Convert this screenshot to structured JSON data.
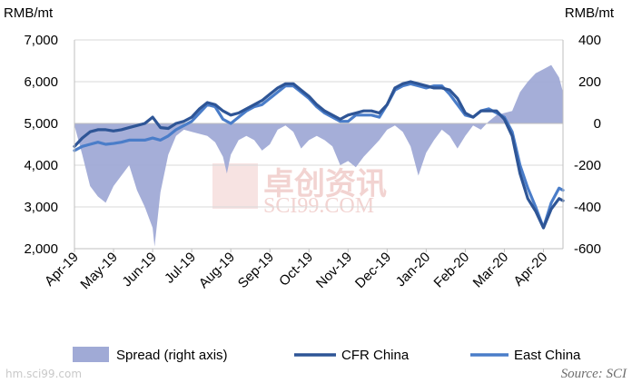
{
  "chart_data": {
    "type": "line",
    "left_axis_unit": "RMB/mt",
    "right_axis_unit": "RMB/mt",
    "ylim_left": [
      2000,
      7000
    ],
    "yticks_left": [
      "2,000",
      "3,000",
      "4,000",
      "5,000",
      "6,000",
      "7,000"
    ],
    "ylim_right": [
      -600,
      400
    ],
    "yticks_right": [
      "-600",
      "-400",
      "-200",
      "0",
      "200",
      "400"
    ],
    "x_tick_labels": [
      "Apr-19",
      "May-19",
      "Jun-19",
      "Jul-19",
      "Aug-19",
      "Sep-19",
      "Oct-19",
      "Nov-19",
      "Dec-19",
      "Jan-20",
      "Feb-20",
      "Mar-20",
      "Apr-20"
    ],
    "x_range_months": [
      0,
      12.5
    ],
    "grid": "horizontal",
    "legend_position": "bottom",
    "series": [
      {
        "name": "Spread (right axis)",
        "type": "area",
        "axis": "right",
        "color": "#a0aad6",
        "x": [
          0,
          0.2,
          0.4,
          0.6,
          0.8,
          1.0,
          1.2,
          1.4,
          1.6,
          1.8,
          2.0,
          2.05,
          2.2,
          2.4,
          2.6,
          2.8,
          3.0,
          3.2,
          3.4,
          3.6,
          3.8,
          3.9,
          4.0,
          4.2,
          4.4,
          4.6,
          4.8,
          5.0,
          5.2,
          5.4,
          5.6,
          5.8,
          6.0,
          6.2,
          6.4,
          6.6,
          6.8,
          7.0,
          7.2,
          7.4,
          7.6,
          7.8,
          8.0,
          8.2,
          8.4,
          8.6,
          8.8,
          9.0,
          9.2,
          9.4,
          9.6,
          9.8,
          10.0,
          10.2,
          10.4,
          10.6,
          10.8,
          11.0,
          11.2,
          11.4,
          11.6,
          11.8,
          12.0,
          12.2,
          12.4,
          12.5
        ],
        "values": [
          -10,
          -150,
          -300,
          -350,
          -380,
          -300,
          -250,
          -200,
          -320,
          -400,
          -500,
          -590,
          -330,
          -150,
          -60,
          -30,
          -40,
          -50,
          -60,
          -90,
          -160,
          -240,
          -150,
          -80,
          -60,
          -80,
          -130,
          -100,
          -30,
          -10,
          -40,
          -120,
          -80,
          -60,
          -80,
          -110,
          -200,
          -180,
          -210,
          -160,
          -120,
          -80,
          -30,
          -10,
          -40,
          -110,
          -250,
          -140,
          -80,
          -30,
          -60,
          -120,
          -60,
          -10,
          -30,
          10,
          40,
          50,
          60,
          150,
          200,
          240,
          260,
          280,
          220,
          150
        ]
      },
      {
        "name": "CFR China",
        "type": "line",
        "axis": "left",
        "color": "#2e5596",
        "x": [
          0,
          0.2,
          0.4,
          0.6,
          0.8,
          1.0,
          1.2,
          1.4,
          1.6,
          1.8,
          2.0,
          2.2,
          2.4,
          2.6,
          2.8,
          3.0,
          3.2,
          3.4,
          3.6,
          3.8,
          4.0,
          4.2,
          4.4,
          4.6,
          4.8,
          5.0,
          5.2,
          5.4,
          5.6,
          5.8,
          6.0,
          6.2,
          6.4,
          6.6,
          6.8,
          7.0,
          7.2,
          7.4,
          7.6,
          7.8,
          8.0,
          8.2,
          8.4,
          8.6,
          8.8,
          9.0,
          9.2,
          9.4,
          9.6,
          9.8,
          10.0,
          10.2,
          10.4,
          10.6,
          10.8,
          11.0,
          11.2,
          11.4,
          11.6,
          11.8,
          12.0,
          12.2,
          12.4,
          12.5
        ],
        "values": [
          4450,
          4650,
          4800,
          4850,
          4850,
          4820,
          4850,
          4900,
          4950,
          5000,
          5150,
          4900,
          4880,
          5000,
          5050,
          5150,
          5350,
          5500,
          5450,
          5300,
          5200,
          5250,
          5350,
          5450,
          5550,
          5700,
          5850,
          5950,
          5950,
          5800,
          5650,
          5450,
          5300,
          5200,
          5100,
          5200,
          5250,
          5300,
          5300,
          5250,
          5450,
          5850,
          5950,
          6000,
          5950,
          5900,
          5850,
          5850,
          5800,
          5600,
          5250,
          5150,
          5300,
          5300,
          5300,
          5100,
          4700,
          3800,
          3200,
          2900,
          2500,
          2950,
          3200,
          3150
        ]
      },
      {
        "name": "East China",
        "type": "line",
        "axis": "left",
        "color": "#4a7dc9",
        "x": [
          0,
          0.2,
          0.4,
          0.6,
          0.8,
          1.0,
          1.2,
          1.4,
          1.6,
          1.8,
          2.0,
          2.2,
          2.4,
          2.6,
          2.8,
          3.0,
          3.2,
          3.4,
          3.6,
          3.8,
          4.0,
          4.2,
          4.4,
          4.6,
          4.8,
          5.0,
          5.2,
          5.4,
          5.6,
          5.8,
          6.0,
          6.2,
          6.4,
          6.6,
          6.8,
          7.0,
          7.2,
          7.4,
          7.6,
          7.8,
          8.0,
          8.2,
          8.4,
          8.6,
          8.8,
          9.0,
          9.2,
          9.4,
          9.6,
          9.8,
          10.0,
          10.2,
          10.4,
          10.6,
          10.8,
          11.0,
          11.2,
          11.4,
          11.6,
          11.8,
          12.0,
          12.2,
          12.4,
          12.5
        ],
        "values": [
          4350,
          4450,
          4500,
          4550,
          4500,
          4520,
          4550,
          4600,
          4600,
          4600,
          4650,
          4600,
          4700,
          4850,
          4950,
          5050,
          5250,
          5450,
          5400,
          5100,
          5000,
          5150,
          5300,
          5400,
          5450,
          5600,
          5750,
          5900,
          5900,
          5750,
          5600,
          5400,
          5250,
          5150,
          5050,
          5050,
          5200,
          5200,
          5200,
          5150,
          5450,
          5800,
          5900,
          5950,
          5900,
          5850,
          5900,
          5900,
          5700,
          5450,
          5200,
          5150,
          5300,
          5350,
          5250,
          5150,
          4800,
          4000,
          3450,
          3000,
          2500,
          3100,
          3450,
          3400
        ]
      }
    ]
  },
  "legend": {
    "spread": "Spread (right axis)",
    "cfr": "CFR China",
    "east": "East China"
  },
  "source": "Source: SCI",
  "watermark": {
    "cn": "卓创资讯",
    "en": "SCI99.COM",
    "footer": "hm.sci99.com"
  },
  "colors": {
    "spread": "#a0aad6",
    "cfr": "#2e5596",
    "east": "#4a7dc9",
    "grid": "#d9d9d9",
    "watermark": "#e3a09a"
  }
}
